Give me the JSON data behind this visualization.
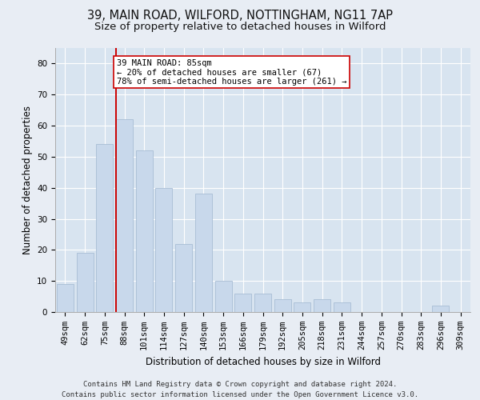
{
  "title_line1": "39, MAIN ROAD, WILFORD, NOTTINGHAM, NG11 7AP",
  "title_line2": "Size of property relative to detached houses in Wilford",
  "xlabel": "Distribution of detached houses by size in Wilford",
  "ylabel": "Number of detached properties",
  "categories": [
    "49sqm",
    "62sqm",
    "75sqm",
    "88sqm",
    "101sqm",
    "114sqm",
    "127sqm",
    "140sqm",
    "153sqm",
    "166sqm",
    "179sqm",
    "192sqm",
    "205sqm",
    "218sqm",
    "231sqm",
    "244sqm",
    "257sqm",
    "270sqm",
    "283sqm",
    "296sqm",
    "309sqm"
  ],
  "values": [
    9,
    19,
    54,
    62,
    52,
    40,
    22,
    38,
    10,
    6,
    6,
    4,
    3,
    4,
    3,
    0,
    0,
    0,
    0,
    2,
    0
  ],
  "bar_color": "#c8d8eb",
  "bar_edge_color": "#a8bdd4",
  "vline_index": 3,
  "vline_color": "#cc0000",
  "annotation_line1": "39 MAIN ROAD: 85sqm",
  "annotation_line2": "← 20% of detached houses are smaller (67)",
  "annotation_line3": "78% of semi-detached houses are larger (261) →",
  "annotation_box_color": "white",
  "annotation_box_edge_color": "#cc0000",
  "ylim": [
    0,
    85
  ],
  "yticks": [
    0,
    10,
    20,
    30,
    40,
    50,
    60,
    70,
    80
  ],
  "footer_line1": "Contains HM Land Registry data © Crown copyright and database right 2024.",
  "footer_line2": "Contains public sector information licensed under the Open Government Licence v3.0.",
  "background_color": "#e8edf4",
  "plot_background_color": "#d8e4f0",
  "grid_color": "white",
  "title1_fontsize": 10.5,
  "title2_fontsize": 9.5,
  "tick_fontsize": 7.5,
  "ylabel_fontsize": 8.5,
  "xlabel_fontsize": 8.5,
  "footer_fontsize": 6.5,
  "annotation_fontsize": 7.5
}
